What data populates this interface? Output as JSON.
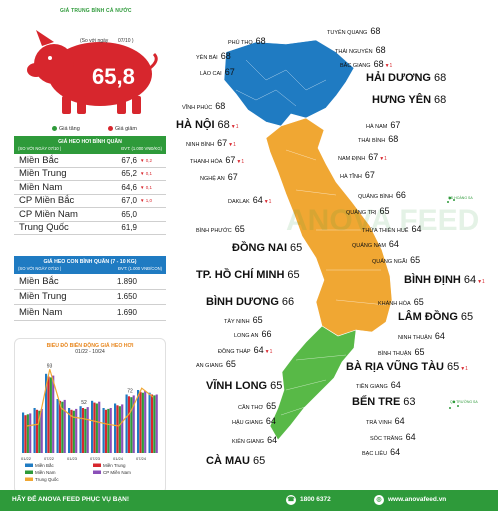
{
  "header": {
    "caption": "GIÁ TRUNG BÌNH CẢ NƯỚC",
    "national_avg": "65,8",
    "compare_label": "(So với ngày",
    "compare_date": "07/10 )",
    "legend_up": "Giá tăng",
    "legend_down": "Giá giảm",
    "colors": {
      "green": "#2e9a3a",
      "red": "#d7262d",
      "blue": "#1f7bc2",
      "orange": "#f0a733"
    }
  },
  "table_live_hog": {
    "title": "GIÁ HEO HƠI BÌNH QUÂN",
    "sub_left": "(SO VỚI NGÀY 07/10 )",
    "sub_right": "ĐVT: (1.000 VNĐ/KG)",
    "rows": [
      {
        "name": "Miền Bắc",
        "value": "67,6",
        "change": "▼ 0,2",
        "dir": "down"
      },
      {
        "name": "Miền Trung",
        "value": "65,2",
        "change": "▼ 0,1",
        "dir": "down"
      },
      {
        "name": "Miền Nam",
        "value": "64,6",
        "change": "▼ 0,1",
        "dir": "down"
      },
      {
        "name": "CP Miền Bắc",
        "value": "67,0",
        "change": "▼ 1,0",
        "dir": "down"
      },
      {
        "name": "CP Miền Nam",
        "value": "65,0",
        "change": "",
        "dir": ""
      },
      {
        "name": "Trung Quốc",
        "value": "61,9",
        "change": "",
        "dir": ""
      }
    ]
  },
  "table_piglet": {
    "title": "GIÁ HEO CON BÌNH QUÂN (7 - 10 KG)",
    "sub_left": "(SO VỚI NGÀY 07/10 )",
    "sub_right": "ĐVT: (1.000 VNĐ/CON)",
    "rows": [
      {
        "name": "Miền Bắc",
        "value": "1.890"
      },
      {
        "name": "Miền Trung",
        "value": "1.650"
      },
      {
        "name": "Miền Nam",
        "value": "1.690"
      }
    ]
  },
  "chart_data": {
    "type": "bar",
    "title": "BIỂU ĐỒ BIẾN ĐỘNG GIÁ HEO HƠI",
    "subtitle": "01/22 - 10/24",
    "categories": [
      "01/22",
      "04/22",
      "07/22",
      "10/22",
      "01/23",
      "04/23",
      "07/23",
      "10/23",
      "01/24",
      "04/24",
      "07/24",
      "10/24"
    ],
    "annotations": [
      {
        "label": "93",
        "index": 2
      },
      {
        "label": "52",
        "index": 5
      },
      {
        "label": "72",
        "index": 9
      }
    ],
    "ylim": [
      0,
      100
    ],
    "series": [
      {
        "name": "Miền Bắc",
        "color": "#1f7bc2",
        "values": [
          45,
          50,
          88,
          60,
          50,
          52,
          58,
          50,
          55,
          65,
          70,
          67
        ]
      },
      {
        "name": "Miền Trung",
        "color": "#d7262d",
        "values": [
          42,
          48,
          85,
          58,
          48,
          50,
          56,
          48,
          53,
          63,
          68,
          65
        ]
      },
      {
        "name": "Miền Nam",
        "color": "#2e9a3a",
        "values": [
          43,
          47,
          84,
          57,
          47,
          49,
          55,
          49,
          52,
          62,
          67,
          64
        ]
      },
      {
        "name": "CP Miền Nam",
        "color": "#8a4fb8",
        "values": [
          44,
          49,
          86,
          59,
          49,
          51,
          57,
          50,
          54,
          64,
          69,
          65
        ]
      },
      {
        "name": "Trung Quốc",
        "color": "#f0a733",
        "values": [
          30,
          32,
          93,
          50,
          40,
          38,
          35,
          32,
          30,
          45,
          72,
          62
        ]
      }
    ]
  },
  "map": {
    "provinces": [
      {
        "name": "TUYÊN QUANG",
        "value": "68",
        "big": false,
        "dir": ""
      },
      {
        "name": "PHÚ THỌ",
        "value": "68",
        "big": false,
        "dir": ""
      },
      {
        "name": "THÁI NGUYÊN",
        "value": "68",
        "big": false,
        "dir": ""
      },
      {
        "name": "YÊN BÁI",
        "value": "68",
        "big": false,
        "dir": ""
      },
      {
        "name": "BẮC GIANG",
        "value": "68",
        "big": false,
        "dir": "down"
      },
      {
        "name": "LÀO CAI",
        "value": "67",
        "big": false,
        "dir": ""
      },
      {
        "name": "HẢI DƯƠNG",
        "value": "68",
        "big": true,
        "dir": ""
      },
      {
        "name": "VĨNH PHÚC",
        "value": "68",
        "big": false,
        "dir": ""
      },
      {
        "name": "HƯNG YÊN",
        "value": "68",
        "big": true,
        "dir": ""
      },
      {
        "name": "HÀ NỘI",
        "value": "68",
        "big": true,
        "dir": "down"
      },
      {
        "name": "HÀ NAM",
        "value": "67",
        "big": false,
        "dir": ""
      },
      {
        "name": "THÁI BÌNH",
        "value": "68",
        "big": false,
        "dir": ""
      },
      {
        "name": "NINH BÌNH",
        "value": "67",
        "big": false,
        "dir": "down"
      },
      {
        "name": "NAM ĐỊNH",
        "value": "67",
        "big": false,
        "dir": "down"
      },
      {
        "name": "THANH HÓA",
        "value": "67",
        "big": false,
        "dir": "down"
      },
      {
        "name": "NGHỆ AN",
        "value": "67",
        "big": false,
        "dir": ""
      },
      {
        "name": "HÀ TĨNH",
        "value": "67",
        "big": false,
        "dir": ""
      },
      {
        "name": "QUẢNG BÌNH",
        "value": "66",
        "big": false,
        "dir": ""
      },
      {
        "name": "DAKLAK",
        "value": "64",
        "big": false,
        "dir": "down"
      },
      {
        "name": "QUẢNG TRỊ",
        "value": "65",
        "big": false,
        "dir": ""
      },
      {
        "name": "BÌNH PHƯỚC",
        "value": "65",
        "big": false,
        "dir": ""
      },
      {
        "name": "THỪA THIÊN HUẾ",
        "value": "64",
        "big": false,
        "dir": ""
      },
      {
        "name": "QUẢNG NAM",
        "value": "64",
        "big": false,
        "dir": ""
      },
      {
        "name": "ĐỒNG NAI",
        "value": "65",
        "big": true,
        "dir": ""
      },
      {
        "name": "QUẢNG NGÃI",
        "value": "65",
        "big": false,
        "dir": ""
      },
      {
        "name": "TP. HỒ CHÍ MINH",
        "value": "65",
        "big": true,
        "dir": ""
      },
      {
        "name": "BÌNH ĐỊNH",
        "value": "64",
        "big": true,
        "dir": "down"
      },
      {
        "name": "BÌNH DƯƠNG",
        "value": "66",
        "big": true,
        "dir": ""
      },
      {
        "name": "KHÁNH HÒA",
        "value": "65",
        "big": false,
        "dir": ""
      },
      {
        "name": "TÂY NINH",
        "value": "65",
        "big": false,
        "dir": ""
      },
      {
        "name": "LÂM ĐỒNG",
        "value": "65",
        "big": true,
        "dir": ""
      },
      {
        "name": "LONG AN",
        "value": "66",
        "big": false,
        "dir": ""
      },
      {
        "name": "NINH THUẬN",
        "value": "64",
        "big": false,
        "dir": ""
      },
      {
        "name": "ĐỒNG THÁP",
        "value": "64",
        "big": false,
        "dir": "down"
      },
      {
        "name": "BÌNH THUẬN",
        "value": "65",
        "big": false,
        "dir": ""
      },
      {
        "name": "AN GIANG",
        "value": "65",
        "big": false,
        "dir": ""
      },
      {
        "name": "BÀ RỊA VŨNG TÀU",
        "value": "65",
        "big": true,
        "dir": "down"
      },
      {
        "name": "VĨNH LONG",
        "value": "65",
        "big": true,
        "dir": ""
      },
      {
        "name": "TIỀN GIANG",
        "value": "64",
        "big": false,
        "dir": ""
      },
      {
        "name": "BẾN TRE",
        "value": "63",
        "big": true,
        "dir": ""
      },
      {
        "name": "CẦN THƠ",
        "value": "65",
        "big": false,
        "dir": ""
      },
      {
        "name": "TRÀ VINH",
        "value": "64",
        "big": false,
        "dir": ""
      },
      {
        "name": "HẬU GIANG",
        "value": "64",
        "big": false,
        "dir": ""
      },
      {
        "name": "SÓC TRĂNG",
        "value": "64",
        "big": false,
        "dir": ""
      },
      {
        "name": "KIÊN GIANG",
        "value": "64",
        "big": false,
        "dir": ""
      },
      {
        "name": "BẠC LIÊU",
        "value": "64",
        "big": false,
        "dir": ""
      },
      {
        "name": "CÀ MAU",
        "value": "65",
        "big": true,
        "dir": ""
      }
    ],
    "islands": [
      "QĐ HOÀNG SA",
      "QĐ TRƯỜNG SA"
    ],
    "watermark": "ANOVA FEED"
  },
  "footer": {
    "slogan": "HÃY ĐỂ ANOVA FEED PHỤC VỤ BẠN!",
    "hotline": "1800 6372",
    "website": "www.anovafeed.vn"
  }
}
